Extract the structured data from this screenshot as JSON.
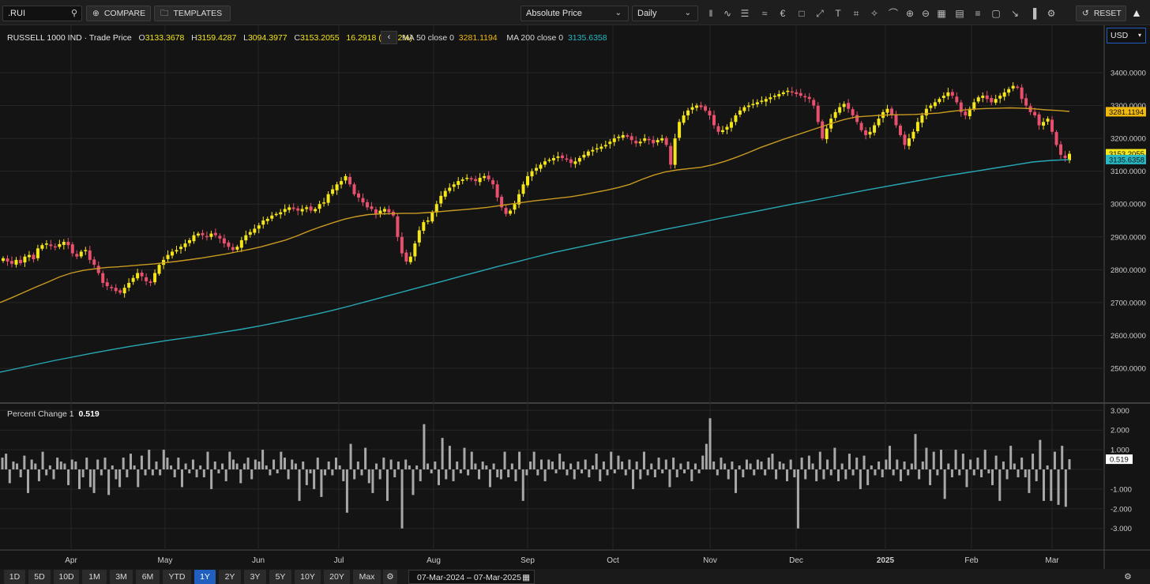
{
  "toolbar": {
    "symbol": ".RUI",
    "compare_label": "COMPARE",
    "templates_label": "TEMPLATES",
    "price_mode": "Absolute Price",
    "interval": "Daily",
    "reset_label": "RESET",
    "tools": [
      "candlestick-icon",
      "line-chart-icon",
      "bar-style-icon",
      "draw-icon",
      "currency-icon",
      "event-icon",
      "measure-icon",
      "text-icon",
      "crop-icon",
      "pattern-icon",
      "magnet-icon",
      "zoom-in-icon",
      "zoom-out-icon",
      "table-icon",
      "report-icon",
      "stack-icon",
      "box-icon",
      "pin-icon",
      "report-bar-icon",
      "settings-icon"
    ]
  },
  "legend": {
    "title": "RUSSELL 1000 IND · Trade Price",
    "o_label": "O",
    "o_value": "3133.3678",
    "h_label": "H",
    "h_value": "3159.4287",
    "l_label": "L",
    "l_value": "3094.3977",
    "c_label": "C",
    "c_value": "3153.2055",
    "change": "16.2918 (+0.52%)",
    "ma50_label": "MA 50 close 0",
    "ma50_value": "3281.1194",
    "ma200_label": "MA 200 close 0",
    "ma200_value": "3135.6358",
    "collapse_icon": "chevron-left-icon"
  },
  "currency": "USD",
  "indicator": {
    "label": "Percent Change 1",
    "value": "0.519"
  },
  "price_axis": {
    "ticks": [
      "3400.0000",
      "3300.0000",
      "3200.0000",
      "3100.0000",
      "3000.0000",
      "2900.0000",
      "2800.0000",
      "2700.0000",
      "2600.0000",
      "2500.0000"
    ],
    "tags": [
      {
        "text": "3281.1194",
        "color": "#f2b90d"
      },
      {
        "text": "3153.2055",
        "color": "#f5e61a"
      },
      {
        "text": "3135.6358",
        "color": "#27b8c4"
      }
    ]
  },
  "pct_axis": {
    "ticks": [
      "3.000",
      "2.000",
      "1.000",
      "0.000",
      "-1.000",
      "-2.000",
      "-3.000"
    ],
    "tag": "0.519"
  },
  "time_axis": [
    "Apr",
    "May",
    "Jun",
    "Jul",
    "Aug",
    "Sep",
    "Oct",
    "Nov",
    "Dec",
    "2025",
    "Feb",
    "Mar"
  ],
  "ranges": [
    "1D",
    "5D",
    "10D",
    "1M",
    "3M",
    "6M",
    "YTD",
    "1Y",
    "2Y",
    "3Y",
    "5Y",
    "10Y",
    "20Y",
    "Max"
  ],
  "active_range": "1Y",
  "date_range": {
    "from": "07-Mar-2024",
    "sep": "–",
    "to": "07-Mar-2025"
  },
  "colors": {
    "up": "#f5e61a",
    "down": "#e8506e",
    "ma50": "#c99a21",
    "ma200": "#27a9b5",
    "bars": "#a8a8a8",
    "active": "#1f5fbf"
  },
  "chart_data": [
    {
      "type": "candlestick",
      "title": "RUSSELL 1000 IND · Trade Price",
      "ylim": [
        2420,
        3510
      ],
      "x_range": [
        "07-Mar-2024",
        "07-Mar-2025"
      ],
      "x_ticks": [
        "Apr",
        "May",
        "Jun",
        "Jul",
        "Aug",
        "Sep",
        "Oct",
        "Nov",
        "Dec",
        "2025",
        "Feb",
        "Mar"
      ],
      "close": [
        2835,
        2825,
        2818,
        2830,
        2820,
        2840,
        2845,
        2832,
        2865,
        2875,
        2880,
        2872,
        2868,
        2878,
        2885,
        2875,
        2850,
        2840,
        2855,
        2860,
        2830,
        2815,
        2790,
        2760,
        2750,
        2745,
        2735,
        2730,
        2745,
        2760,
        2775,
        2790,
        2780,
        2765,
        2760,
        2790,
        2815,
        2830,
        2845,
        2855,
        2860,
        2870,
        2880,
        2890,
        2905,
        2910,
        2905,
        2900,
        2910,
        2905,
        2895,
        2880,
        2870,
        2860,
        2870,
        2890,
        2905,
        2915,
        2925,
        2935,
        2950,
        2955,
        2965,
        2970,
        2975,
        2985,
        2990,
        2985,
        2980,
        2985,
        2990,
        2980,
        2985,
        3000,
        3005,
        3030,
        3045,
        3060,
        3070,
        3085,
        3060,
        3030,
        3020,
        3005,
        2990,
        2985,
        2970,
        2980,
        2985,
        2975,
        2965,
        2900,
        2850,
        2825,
        2840,
        2880,
        2920,
        2945,
        2950,
        2975,
        3000,
        3025,
        3040,
        3050,
        3060,
        3070,
        3075,
        3080,
        3075,
        3070,
        3080,
        3085,
        3075,
        3060,
        3020,
        2990,
        2970,
        2980,
        3000,
        3030,
        3060,
        3085,
        3100,
        3110,
        3120,
        3130,
        3135,
        3140,
        3145,
        3140,
        3135,
        3125,
        3130,
        3140,
        3150,
        3160,
        3165,
        3170,
        3175,
        3180,
        3190,
        3200,
        3205,
        3210,
        3205,
        3195,
        3185,
        3190,
        3200,
        3195,
        3185,
        3195,
        3200,
        3180,
        3120,
        3200,
        3250,
        3270,
        3285,
        3295,
        3300,
        3295,
        3285,
        3270,
        3240,
        3220,
        3225,
        3235,
        3250,
        3270,
        3285,
        3295,
        3300,
        3305,
        3310,
        3315,
        3320,
        3325,
        3330,
        3335,
        3340,
        3345,
        3340,
        3335,
        3330,
        3325,
        3320,
        3300,
        3250,
        3200,
        3230,
        3260,
        3280,
        3295,
        3305,
        3290,
        3270,
        3250,
        3225,
        3210,
        3220,
        3240,
        3260,
        3280,
        3290,
        3270,
        3240,
        3210,
        3180,
        3200,
        3220,
        3250,
        3270,
        3290,
        3300,
        3310,
        3320,
        3330,
        3340,
        3330,
        3310,
        3280,
        3270,
        3290,
        3310,
        3325,
        3330,
        3320,
        3310,
        3320,
        3330,
        3340,
        3350,
        3360,
        3355,
        3320,
        3300,
        3280,
        3270,
        3240,
        3250,
        3260,
        3220,
        3180,
        3150,
        3140,
        3153
      ],
      "ma50": [
        2700,
        2715,
        2731,
        2747,
        2762,
        2778,
        2790,
        2798,
        2803,
        2807,
        2809,
        2812,
        2815,
        2818,
        2822,
        2826,
        2831,
        2836,
        2842,
        2848,
        2855,
        2862,
        2870,
        2880,
        2890,
        2903,
        2918,
        2931,
        2943,
        2954,
        2962,
        2968,
        2970,
        2971,
        2972,
        2972,
        2974,
        2977,
        2980,
        2983,
        2986,
        2990,
        2995,
        3000,
        3005,
        3010,
        3014,
        3018,
        3022,
        3028,
        3035,
        3042,
        3050,
        3060,
        3075,
        3088,
        3098,
        3104,
        3108,
        3112,
        3120,
        3130,
        3143,
        3157,
        3172,
        3185,
        3198,
        3210,
        3222,
        3234,
        3246,
        3257,
        3265,
        3268,
        3270,
        3272,
        3272,
        3273,
        3275,
        3277,
        3282,
        3286,
        3289,
        3291,
        3292,
        3293,
        3292,
        3290,
        3287,
        3285,
        3282
      ],
      "ma200": [
        2488,
        2500,
        2512,
        2524,
        2535,
        2546,
        2556,
        2566,
        2575,
        2584,
        2592,
        2600,
        2609,
        2618,
        2628,
        2639,
        2651,
        2663,
        2676,
        2690,
        2705,
        2720,
        2735,
        2750,
        2765,
        2780,
        2795,
        2810,
        2824,
        2838,
        2852,
        2864,
        2876,
        2888,
        2899,
        2910,
        2922,
        2933,
        2944,
        2956,
        2967,
        2978,
        2989,
        3000,
        3010,
        3021,
        3032,
        3043,
        3053,
        3063,
        3073,
        3083,
        3092,
        3101,
        3110,
        3119,
        3128,
        3133,
        3135.6358
      ],
      "last": {
        "open": 3133.3678,
        "high": 3159.4287,
        "low": 3094.3977,
        "close": 3153.2055,
        "change": 16.2918,
        "change_pct": 0.52
      }
    },
    {
      "type": "bar",
      "title": "Percent Change 1",
      "ylim": [
        -3.3,
        3.3
      ],
      "values": [
        0.6,
        0.8,
        -0.7,
        0.4,
        0.3,
        -0.4,
        0.7,
        -1.2,
        0.5,
        0.3,
        -0.6,
        0.9,
        -0.3,
        0.2,
        -0.5,
        0.6,
        0.4,
        0.3,
        -0.8,
        0.5,
        0.4,
        -1.0,
        -0.4,
        0.6,
        -0.9,
        -1.2,
        0.5,
        -0.3,
        0.6,
        -1.3,
        0.2,
        -0.5,
        -0.9,
        0.6,
        -0.4,
        0.8,
        0.2,
        -0.9,
        0.7,
        -0.3,
        1.0,
        -0.3,
        0.4,
        -0.3,
        1.0,
        0.6,
        0.2,
        -0.4,
        0.6,
        -0.9,
        0.3,
        -0.2,
        0.5,
        -0.4,
        0.2,
        -0.4,
        0.9,
        -1.0,
        0.4,
        -0.2,
        0.3,
        -0.6,
        0.9,
        0.5,
        0.3,
        -0.7,
        0.3,
        0.6,
        -0.5,
        0.5,
        0.4,
        1.0,
        0.2,
        -0.3,
        0.5,
        -0.2,
        0.9,
        0.6,
        -0.5,
        0.5,
        0.3,
        -1.6,
        0.4,
        -0.8,
        -0.2,
        -1.0,
        0.6,
        -1.4,
        -0.3,
        0.4,
        -0.3,
        0.6,
        0.2,
        -0.6,
        -2.2,
        1.3,
        -0.5,
        0.4,
        -0.3,
        1.1,
        -0.7,
        -1.2,
        0.3,
        -0.5,
        0.6,
        -1.6,
        0.5,
        -0.4,
        0.4,
        -3.0,
        0.5,
        0.2,
        -1.3,
        0.2,
        -0.6,
        2.3,
        0.3,
        -0.2,
        0.4,
        -0.8,
        1.6,
        -0.5,
        1.2,
        -0.6,
        0.4,
        -0.2,
        1.1,
        -0.3,
        0.9,
        0.3,
        -0.5,
        0.4,
        0.2,
        -0.9,
        0.3,
        -0.4,
        -0.5,
        0.9,
        -0.4,
        0.3,
        -0.6,
        0.9,
        -1.6,
        -0.3,
        0.4,
        0.9,
        -0.3,
        0.5,
        -0.6,
        0.5,
        0.4,
        -0.2,
        0.8,
        0.4,
        -0.3,
        0.3,
        -0.5,
        0.4,
        -0.2,
        0.5,
        -0.4,
        0.2,
        0.8,
        -0.6,
        0.4,
        -0.3,
        0.9,
        -0.2,
        0.7,
        0.4,
        -0.3,
        0.5,
        -1.0,
        0.4,
        -0.5,
        0.9,
        -0.3,
        0.3,
        -0.4,
        0.6,
        -0.2,
        0.5,
        -0.9,
        0.6,
        -0.4,
        0.3,
        -0.2,
        0.4,
        -0.6,
        0.3,
        -0.2,
        0.7,
        1.3,
        2.6,
        0.4,
        -0.3,
        0.6,
        0.3,
        -0.5,
        0.4,
        -1.2,
        0.2,
        -0.4,
        0.5,
        0.3,
        -0.3,
        0.5,
        0.4,
        -0.3,
        0.6,
        0.8,
        -0.5,
        0.4,
        0.3,
        -0.6,
        0.5,
        -0.4,
        -3.0,
        0.6,
        -0.5,
        0.7,
        0.3,
        -0.6,
        0.9,
        -0.5,
        0.5,
        -0.3,
        1.1,
        -0.6,
        0.3,
        -0.5,
        0.8,
        -0.3,
        0.6,
        -1.0,
        0.7,
        -0.8,
        0.2,
        -0.3,
        0.4,
        -0.4,
        0.5,
        1.2,
        -0.3,
        0.5,
        -0.6,
        0.4,
        -0.3,
        0.3,
        1.8,
        -0.5,
        0.4,
        1.1,
        -0.8,
        0.9,
        -0.3,
        1.0,
        -1.5,
        0.3,
        -0.4,
        1.0,
        -0.3,
        0.8,
        -0.9,
        0.5,
        -0.3,
        0.6,
        -0.4,
        1.0,
        -0.2,
        -0.8,
        0.7,
        -1.6,
        0.4,
        -0.5,
        1.2,
        0.3,
        -0.4,
        0.6,
        -0.4,
        -1.2,
        0.8,
        -0.6,
        1.5,
        -1.6,
        0.2,
        -1.6,
        0.9,
        -1.8,
        1.2,
        -1.9,
        0.519
      ]
    }
  ]
}
